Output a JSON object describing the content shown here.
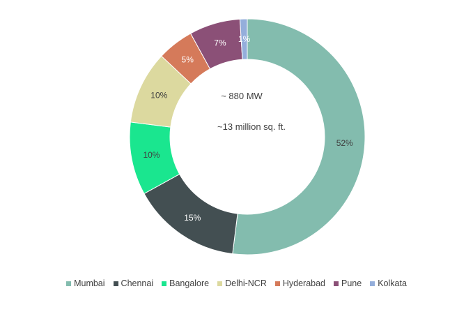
{
  "chart_data": {
    "type": "pie",
    "donut": true,
    "center_text": [
      "~ 880 MW",
      "~13 million sq. ft."
    ],
    "legend_position": "bottom",
    "slices": [
      {
        "name": "Mumbai",
        "value": 52,
        "label": "52%",
        "color": "#83bcae",
        "label_color": "#404040"
      },
      {
        "name": "Chennai",
        "value": 15,
        "label": "15%",
        "color": "#434f52",
        "label_color": "#ffffff"
      },
      {
        "name": "Bangalore",
        "value": 10,
        "label": "10%",
        "color": "#1ae68f",
        "label_color": "#404040"
      },
      {
        "name": "Delhi-NCR",
        "value": 10,
        "label": "10%",
        "color": "#dcd99f",
        "label_color": "#404040"
      },
      {
        "name": "Hyderabad",
        "value": 5,
        "label": "5%",
        "color": "#d57a5a",
        "label_color": "#ffffff"
      },
      {
        "name": "Pune",
        "value": 7,
        "label": "7%",
        "color": "#8b5077",
        "label_color": "#ffffff"
      },
      {
        "name": "Kolkata",
        "value": 1,
        "label": "1%",
        "color": "#94aedb",
        "label_color": "#ffffff"
      }
    ]
  }
}
